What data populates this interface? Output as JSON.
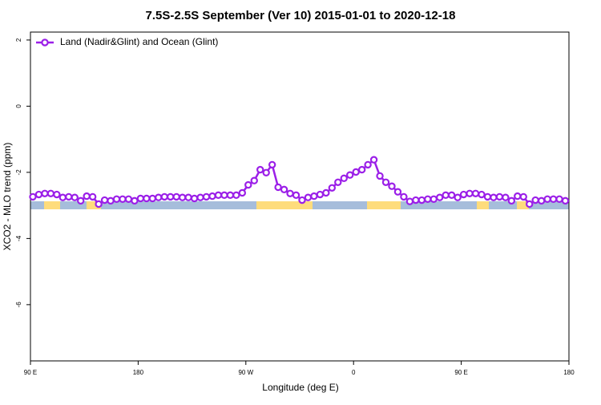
{
  "chart_data": {
    "type": "line",
    "title": "7.5S-2.5S September (Ver 10)   2015-01-01 to 2020-12-18",
    "x_label": "Longitude (deg E)",
    "y_label": "XCO2 - MLO trend (ppm)",
    "xlim": [
      90,
      540
    ],
    "ylim": [
      -7.7,
      2.24
    ],
    "xticks": [
      {
        "value": 90,
        "label": "90 E"
      },
      {
        "value": 180,
        "label": "180"
      },
      {
        "value": 270,
        "label": "90 W"
      },
      {
        "value": 360,
        "label": "0"
      },
      {
        "value": 450,
        "label": "90 E"
      },
      {
        "value": 540,
        "label": "180"
      }
    ],
    "yticks": [
      -6,
      -4,
      -2,
      0,
      2
    ],
    "legend": "top-left",
    "x": [
      92,
      97,
      102,
      107,
      112,
      117,
      122,
      127,
      132,
      137,
      142,
      147,
      152,
      157,
      162,
      167,
      172,
      177,
      182,
      187,
      192,
      197,
      202,
      207,
      212,
      217,
      222,
      227,
      232,
      237,
      242,
      247,
      252,
      257,
      262,
      267,
      272,
      277,
      282,
      287,
      292,
      297,
      302,
      307,
      312,
      317,
      322,
      327,
      332,
      337,
      342,
      347,
      352,
      357,
      362,
      367,
      372,
      377,
      382,
      387,
      392,
      397,
      402,
      407,
      412,
      417,
      422,
      427,
      432,
      437,
      442,
      447,
      452,
      457,
      462,
      467,
      472,
      477,
      482,
      487,
      492,
      497,
      502,
      507,
      512,
      517,
      522,
      527,
      532,
      537
    ],
    "series": [
      {
        "name": "Land (Nadir&Glint) and Ocean (Glint)",
        "color": "#9b1fe8",
        "values": [
          -2.74,
          -2.67,
          -2.64,
          -2.64,
          -2.67,
          -2.76,
          -2.74,
          -2.76,
          -2.86,
          -2.72,
          -2.74,
          -2.96,
          -2.84,
          -2.86,
          -2.81,
          -2.81,
          -2.81,
          -2.86,
          -2.79,
          -2.79,
          -2.79,
          -2.76,
          -2.74,
          -2.74,
          -2.74,
          -2.76,
          -2.76,
          -2.79,
          -2.76,
          -2.74,
          -2.72,
          -2.69,
          -2.69,
          -2.69,
          -2.69,
          -2.62,
          -2.38,
          -2.25,
          -1.92,
          -2.01,
          -1.77,
          -2.45,
          -2.52,
          -2.64,
          -2.69,
          -2.84,
          -2.76,
          -2.72,
          -2.67,
          -2.62,
          -2.47,
          -2.3,
          -2.18,
          -2.08,
          -1.99,
          -1.92,
          -1.77,
          -1.62,
          -2.11,
          -2.3,
          -2.42,
          -2.59,
          -2.74,
          -2.88,
          -2.84,
          -2.84,
          -2.81,
          -2.81,
          -2.76,
          -2.69,
          -2.69,
          -2.76,
          -2.67,
          -2.64,
          -2.64,
          -2.67,
          -2.74,
          -2.76,
          -2.74,
          -2.76,
          -2.86,
          -2.72,
          -2.74,
          -2.96,
          -2.84,
          -2.86,
          -2.81,
          -2.81,
          -2.81,
          -2.86
        ]
      }
    ]
  }
}
